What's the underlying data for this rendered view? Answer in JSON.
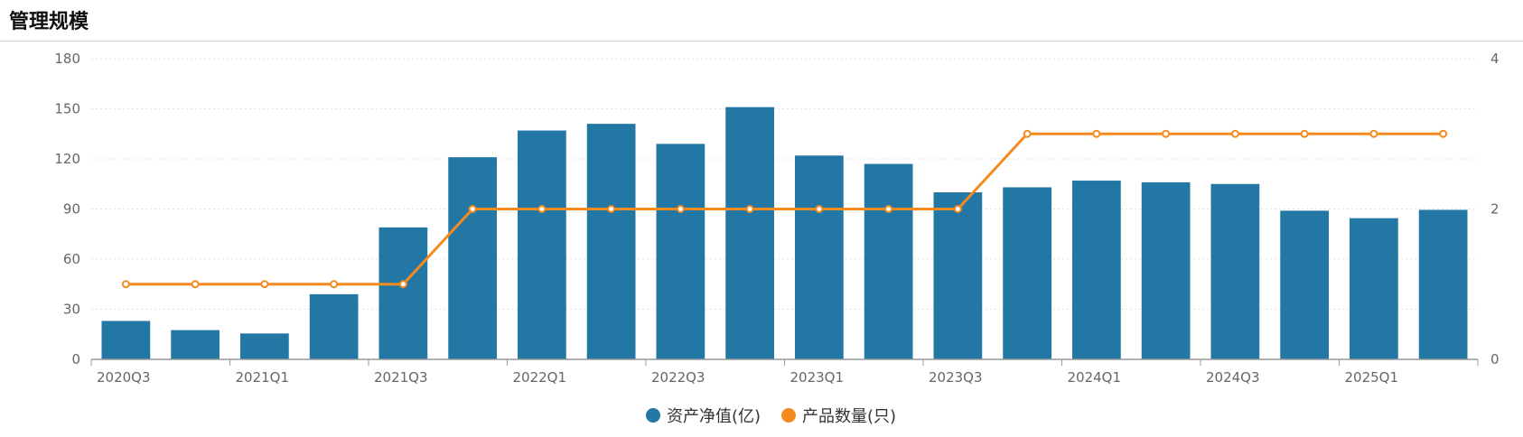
{
  "page": {
    "title": "管理规模"
  },
  "chart_data": {
    "type": "bar",
    "title": "",
    "categories": [
      "2020Q3",
      "2020Q4",
      "2021Q1",
      "2021Q2",
      "2021Q3",
      "2021Q4",
      "2022Q1",
      "2022Q2",
      "2022Q3",
      "2022Q4",
      "2023Q1",
      "2023Q2",
      "2023Q3",
      "2023Q4",
      "2024Q1",
      "2024Q2",
      "2024Q3",
      "2024Q4",
      "2025Q1",
      "2025Q2"
    ],
    "x_tick_labels": [
      "2020Q3",
      "2021Q1",
      "2021Q3",
      "2022Q1",
      "2022Q3",
      "2023Q1",
      "2023Q3",
      "2024Q1",
      "2024Q3",
      "2025Q1"
    ],
    "series": [
      {
        "name": "资产净值(亿)",
        "type": "bar",
        "axis": "left",
        "color": "#2277a5",
        "values": [
          23,
          17.5,
          15.5,
          39,
          79,
          121,
          137,
          141,
          129,
          151,
          122,
          117,
          100,
          103,
          107,
          106,
          105,
          89,
          84.5,
          89.5
        ]
      },
      {
        "name": "产品数量(只)",
        "type": "line",
        "axis": "right",
        "color": "#f58a1f",
        "values": [
          1,
          1,
          1,
          1,
          1,
          2,
          2,
          2,
          2,
          2,
          2,
          2,
          2,
          3,
          3,
          3,
          3,
          3,
          3,
          3
        ]
      }
    ],
    "y_left": {
      "ticks": [
        "0",
        "30",
        "60",
        "90",
        "120",
        "150",
        "180"
      ],
      "range": [
        0,
        180
      ]
    },
    "y_right": {
      "ticks": [
        "0",
        "2",
        "4"
      ],
      "range": [
        0,
        4
      ]
    },
    "grid": true,
    "legend_position": "bottom"
  }
}
